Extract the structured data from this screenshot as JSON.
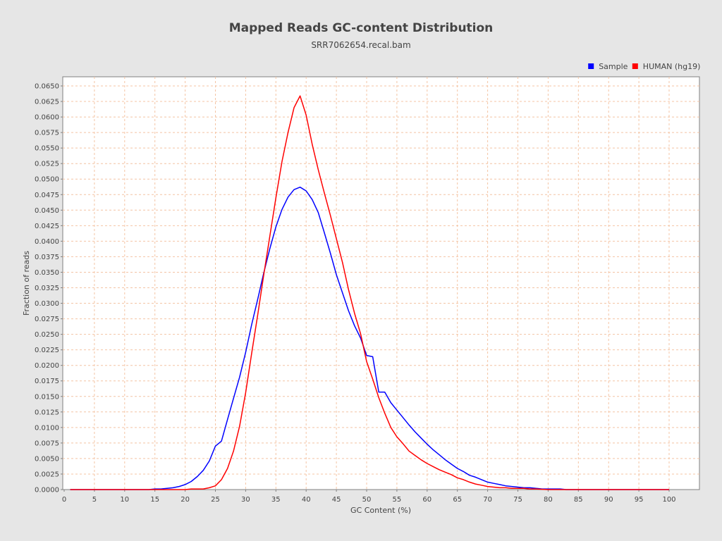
{
  "chart_data": {
    "type": "line",
    "title": "Mapped Reads GC-content Distribution",
    "subtitle": "SRR7062654.recal.bam",
    "xlabel": "GC Content (%)",
    "ylabel": "Fraction of reads",
    "xlim": [
      0,
      105
    ],
    "ylim": [
      0,
      0.0665
    ],
    "xticks": [
      0,
      5,
      10,
      15,
      20,
      25,
      30,
      35,
      40,
      45,
      50,
      55,
      60,
      65,
      70,
      75,
      80,
      85,
      90,
      95,
      100
    ],
    "yticks": [
      0.0,
      0.0025,
      0.005,
      0.0075,
      0.01,
      0.0125,
      0.015,
      0.0175,
      0.02,
      0.0225,
      0.025,
      0.0275,
      0.03,
      0.0325,
      0.035,
      0.0375,
      0.04,
      0.0425,
      0.045,
      0.0475,
      0.05,
      0.0525,
      0.055,
      0.0575,
      0.06,
      0.0625,
      0.065
    ],
    "grid": true,
    "legend_position": "top-right",
    "series": [
      {
        "name": "Sample",
        "color": "#0000ff",
        "x": [
          1,
          5,
          10,
          14,
          15,
          16,
          17,
          18,
          19,
          20,
          21,
          22,
          23,
          24,
          25,
          26,
          27,
          28,
          29,
          30,
          31,
          32,
          33,
          34,
          35,
          36,
          37,
          38,
          39,
          40,
          41,
          42,
          43,
          44,
          45,
          46,
          47,
          48,
          49,
          50,
          51,
          52,
          53,
          54,
          55,
          56,
          57,
          58,
          59,
          60,
          61,
          62,
          63,
          64,
          65,
          66,
          67,
          68,
          69,
          70,
          71,
          72,
          73,
          74,
          75,
          76,
          77,
          78,
          79,
          80,
          81,
          82,
          83,
          84,
          85,
          90,
          95,
          100
        ],
        "y": [
          0,
          0,
          0,
          0,
          0.0001,
          0.0001,
          0.0002,
          0.0003,
          0.0005,
          0.0008,
          0.0013,
          0.0021,
          0.0031,
          0.0046,
          0.007,
          0.0078,
          0.0113,
          0.0147,
          0.0181,
          0.0221,
          0.0266,
          0.0307,
          0.0349,
          0.0388,
          0.0423,
          0.0451,
          0.0471,
          0.0483,
          0.0487,
          0.0481,
          0.0467,
          0.0446,
          0.0414,
          0.0381,
          0.0346,
          0.0317,
          0.0288,
          0.0264,
          0.0244,
          0.0216,
          0.0214,
          0.0157,
          0.0157,
          0.014,
          0.0128,
          0.0116,
          0.0104,
          0.0093,
          0.0083,
          0.0073,
          0.0064,
          0.0056,
          0.0048,
          0.0041,
          0.0034,
          0.0029,
          0.0023,
          0.002,
          0.0016,
          0.0012,
          0.001,
          0.0008,
          0.0006,
          0.0005,
          0.0004,
          0.0003,
          0.0003,
          0.0002,
          0.0001,
          0.0001,
          0.0001,
          0.0001,
          0,
          0,
          0,
          0,
          0,
          0
        ]
      },
      {
        "name": "HUMAN (hg19)",
        "color": "#ff0000",
        "x": [
          1,
          5,
          10,
          15,
          19,
          20,
          21,
          22,
          23,
          24,
          25,
          26,
          27,
          28,
          29,
          30,
          31,
          32,
          33,
          34,
          35,
          36,
          37,
          38,
          39,
          40,
          41,
          42,
          43,
          44,
          45,
          46,
          47,
          48,
          49,
          50,
          51,
          52,
          53,
          54,
          55,
          56,
          57,
          58,
          59,
          60,
          61,
          62,
          63,
          64,
          65,
          66,
          67,
          68,
          69,
          70,
          71,
          72,
          73,
          74,
          75,
          76,
          77,
          78,
          80,
          85,
          90,
          95,
          100
        ],
        "y": [
          0,
          0,
          0,
          0,
          0,
          0,
          0.0001,
          0.0001,
          0.0001,
          0.0003,
          0.0006,
          0.0016,
          0.0034,
          0.0062,
          0.0102,
          0.0156,
          0.022,
          0.0282,
          0.0346,
          0.0408,
          0.047,
          0.0528,
          0.0575,
          0.0615,
          0.0634,
          0.0603,
          0.0556,
          0.0515,
          0.0478,
          0.0442,
          0.0404,
          0.0366,
          0.0322,
          0.0284,
          0.0251,
          0.0206,
          0.0178,
          0.0148,
          0.0123,
          0.01,
          0.0085,
          0.0074,
          0.0062,
          0.0055,
          0.0048,
          0.0042,
          0.0037,
          0.0032,
          0.0028,
          0.0024,
          0.0019,
          0.0016,
          0.0012,
          0.0009,
          0.0007,
          0.0005,
          0.0004,
          0.0003,
          0.0003,
          0.0002,
          0.0002,
          0.0002,
          0.0001,
          0.0001,
          0,
          0,
          0,
          0,
          0
        ]
      }
    ]
  }
}
